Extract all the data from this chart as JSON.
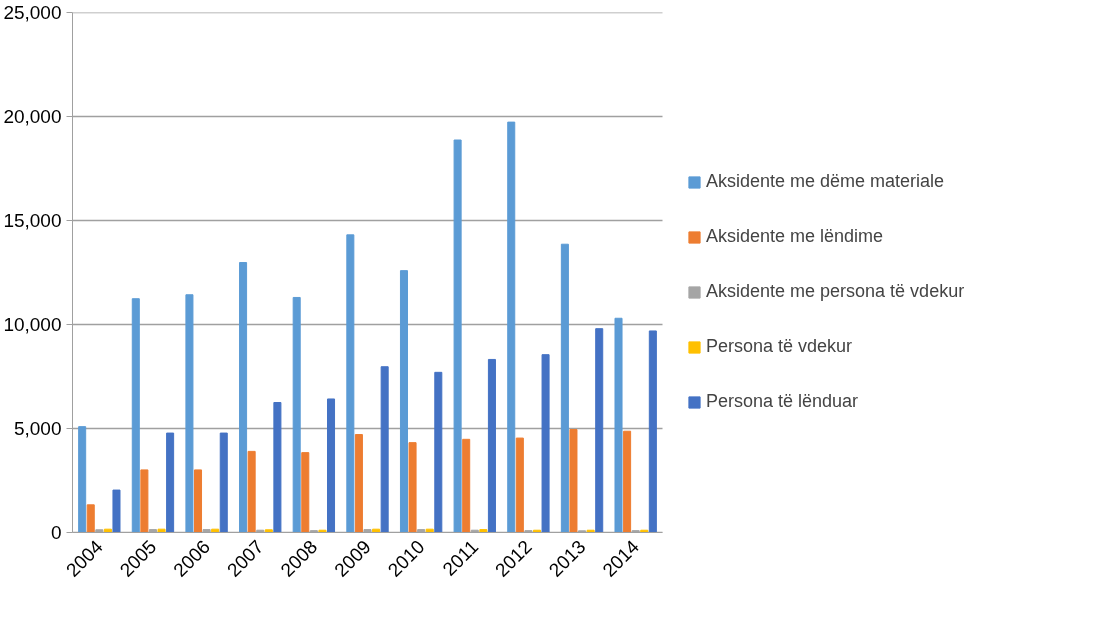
{
  "chart_data": {
    "type": "bar",
    "categories": [
      "2004",
      "2005",
      "2006",
      "2007",
      "2008",
      "2009",
      "2010",
      "2011",
      "2012",
      "2013",
      "2014"
    ],
    "series": [
      {
        "name": "Aksidente me dëme materiale",
        "color": "#5b9bd5",
        "values": [
          5090,
          11240,
          11430,
          12980,
          11300,
          14310,
          12590,
          18870,
          19730,
          13860,
          10300
        ]
      },
      {
        "name": "Aksidente me lëndime",
        "color": "#ed7d31",
        "values": [
          1330,
          3010,
          3010,
          3900,
          3840,
          4710,
          4320,
          4480,
          4540,
          4950,
          4870
        ]
      },
      {
        "name": "Aksidente me persona të vdekur",
        "color": "#a5a5a5",
        "values": [
          130,
          140,
          140,
          110,
          90,
          140,
          140,
          110,
          90,
          80,
          90
        ]
      },
      {
        "name": "Persona të vdekur",
        "color": "#ffc000",
        "values": [
          160,
          160,
          160,
          130,
          110,
          160,
          160,
          140,
          110,
          110,
          110
        ]
      },
      {
        "name": "Persona të lënduar",
        "color": "#4472c4",
        "values": [
          2040,
          4780,
          4780,
          6250,
          6420,
          7970,
          7700,
          8320,
          8550,
          9800,
          9690
        ]
      }
    ],
    "ylim": [
      0,
      25000
    ],
    "yticks": [
      {
        "value": 0,
        "label": "0"
      },
      {
        "value": 5000,
        "label": "5,000"
      },
      {
        "value": 10000,
        "label": "10,000"
      },
      {
        "value": 15000,
        "label": "15,000"
      },
      {
        "value": 20000,
        "label": "20,000"
      },
      {
        "value": 25000,
        "label": "25,000"
      }
    ],
    "grid": "y",
    "legend": "right"
  }
}
